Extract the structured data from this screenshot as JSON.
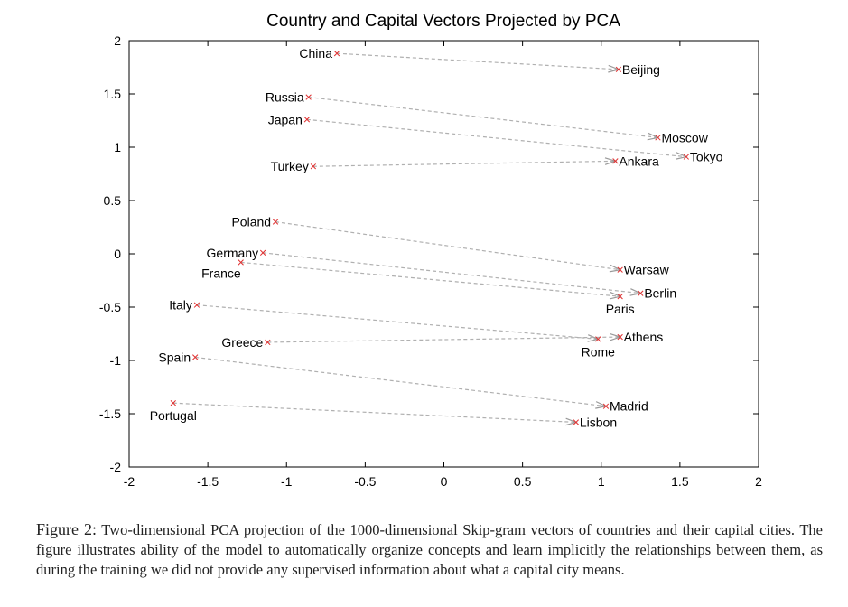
{
  "chart_data": {
    "type": "scatter",
    "title": "Country and Capital Vectors Projected by PCA",
    "xlim": [
      -2,
      2
    ],
    "ylim": [
      -2,
      2
    ],
    "x_ticks": [
      "-2",
      "-1.5",
      "-1",
      "-0.5",
      "0",
      "0.5",
      "1",
      "1.5",
      "2"
    ],
    "y_ticks": [
      "2",
      "1.5",
      "1",
      "0.5",
      "0",
      "-0.5",
      "-1",
      "-1.5",
      "-2"
    ],
    "grid": false,
    "marker_color": "#e03030",
    "arrow_color": "#b0b0b0",
    "points": [
      {
        "label": "China",
        "x": -0.68,
        "y": 1.88,
        "label_pos": "left"
      },
      {
        "label": "Beijing",
        "x": 1.11,
        "y": 1.73,
        "label_pos": "right"
      },
      {
        "label": "Russia",
        "x": -0.86,
        "y": 1.47,
        "label_pos": "left"
      },
      {
        "label": "Japan",
        "x": -0.87,
        "y": 1.26,
        "label_pos": "left"
      },
      {
        "label": "Moscow",
        "x": 1.36,
        "y": 1.09,
        "label_pos": "right"
      },
      {
        "label": "Tokyo",
        "x": 1.54,
        "y": 0.91,
        "label_pos": "right"
      },
      {
        "label": "Turkey",
        "x": -0.83,
        "y": 0.82,
        "label_pos": "left"
      },
      {
        "label": "Ankara",
        "x": 1.09,
        "y": 0.87,
        "label_pos": "right"
      },
      {
        "label": "Poland",
        "x": -1.07,
        "y": 0.3,
        "label_pos": "left"
      },
      {
        "label": "Germany",
        "x": -1.15,
        "y": 0.01,
        "label_pos": "left"
      },
      {
        "label": "France",
        "x": -1.29,
        "y": -0.08,
        "label_pos": "left-below"
      },
      {
        "label": "Warsaw",
        "x": 1.12,
        "y": -0.15,
        "label_pos": "right"
      },
      {
        "label": "Berlin",
        "x": 1.25,
        "y": -0.37,
        "label_pos": "right"
      },
      {
        "label": "Paris",
        "x": 1.12,
        "y": -0.4,
        "label_pos": "below"
      },
      {
        "label": "Italy",
        "x": -1.57,
        "y": -0.48,
        "label_pos": "left"
      },
      {
        "label": "Greece",
        "x": -1.12,
        "y": -0.83,
        "label_pos": "left"
      },
      {
        "label": "Spain",
        "x": -1.58,
        "y": -0.97,
        "label_pos": "left"
      },
      {
        "label": "Athens",
        "x": 1.12,
        "y": -0.78,
        "label_pos": "right"
      },
      {
        "label": "Rome",
        "x": 0.98,
        "y": -0.8,
        "label_pos": "below"
      },
      {
        "label": "Madrid",
        "x": 1.03,
        "y": -1.43,
        "label_pos": "right"
      },
      {
        "label": "Portugal",
        "x": -1.72,
        "y": -1.4,
        "label_pos": "below"
      },
      {
        "label": "Lisbon",
        "x": 0.84,
        "y": -1.58,
        "label_pos": "right"
      }
    ],
    "pairs": [
      [
        "China",
        "Beijing"
      ],
      [
        "Russia",
        "Moscow"
      ],
      [
        "Japan",
        "Tokyo"
      ],
      [
        "Turkey",
        "Ankara"
      ],
      [
        "Poland",
        "Warsaw"
      ],
      [
        "Germany",
        "Berlin"
      ],
      [
        "France",
        "Paris"
      ],
      [
        "Italy",
        "Rome"
      ],
      [
        "Greece",
        "Athens"
      ],
      [
        "Spain",
        "Madrid"
      ],
      [
        "Portugal",
        "Lisbon"
      ]
    ]
  },
  "caption": {
    "label": "Figure 2:",
    "text": "Two-dimensional PCA projection of the 1000-dimensional Skip-gram vectors of countries and their capital cities. The figure illustrates ability of the model to automatically organize concepts and learn implicitly the relationships between them, as during the training we did not provide any supervised information about what a capital city means."
  }
}
